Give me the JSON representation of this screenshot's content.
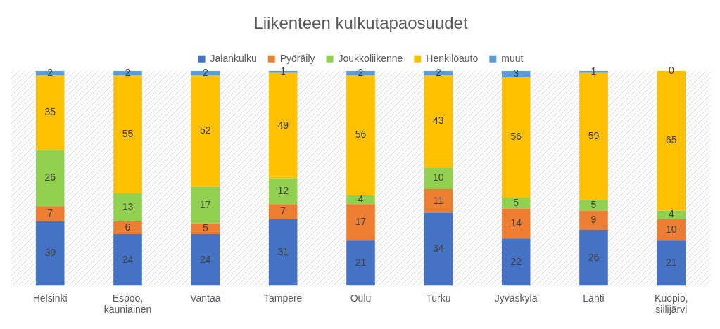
{
  "chart_data": {
    "type": "bar",
    "title": "Liikenteen kulkutapaosuudet",
    "categories": [
      "Helsinki",
      "Espoo, kauniainen",
      "Vantaa",
      "Tampere",
      "Oulu",
      "Turku",
      "Jyväskylä",
      "Lahti",
      "Kuopio, siilijärvi"
    ],
    "series": [
      {
        "name": "Jalankulku",
        "color": "#4472c4",
        "values": [
          30,
          24,
          24,
          31,
          21,
          34,
          22,
          26,
          21
        ]
      },
      {
        "name": "Pyöräily",
        "color": "#ed7d31",
        "values": [
          7,
          6,
          5,
          7,
          17,
          11,
          14,
          9,
          10
        ]
      },
      {
        "name": "Joukkoliikenne",
        "color": "#92d050",
        "values": [
          26,
          13,
          17,
          12,
          4,
          10,
          5,
          5,
          4
        ]
      },
      {
        "name": "Henkilöauto",
        "color": "#ffc000",
        "values": [
          35,
          55,
          52,
          49,
          56,
          43,
          56,
          59,
          65
        ]
      },
      {
        "name": "muut",
        "color": "#5b9bd5",
        "values": [
          2,
          2,
          2,
          1,
          2,
          2,
          3,
          1,
          0
        ]
      }
    ],
    "ylim": [
      0,
      100
    ],
    "stacked": true,
    "data_labels": true,
    "legend": "top",
    "grid": false,
    "tick_labels": "x"
  }
}
